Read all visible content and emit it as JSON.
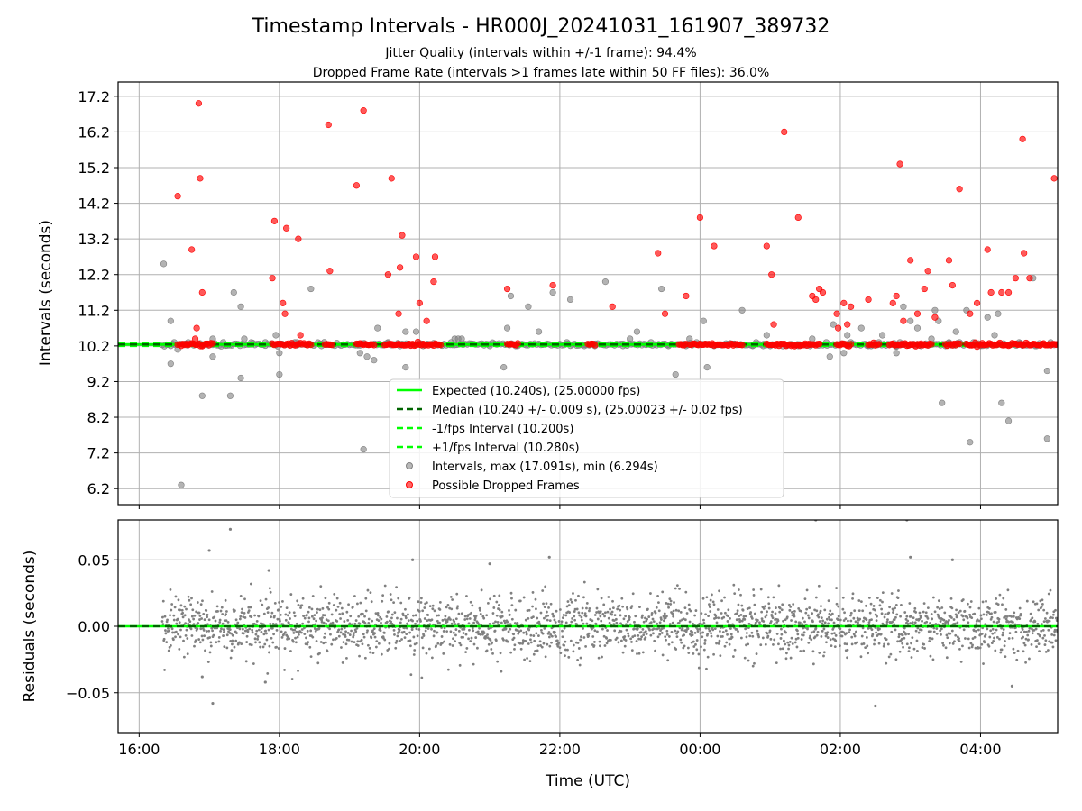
{
  "title": "Timestamp Intervals - HR000J_20241031_161907_389732",
  "subtitle_1": "Jitter Quality (intervals within +/-1 frame): 94.4%",
  "subtitle_2": "Dropped Frame Rate (intervals >1 frames late within 50 FF files): 36.0%",
  "colors": {
    "expected": "#00ff00",
    "median": "#006400",
    "band": "#00ff00",
    "intervals": "#808080",
    "dropped": "#ff0000",
    "residuals": "#808080",
    "grid": "#b0b0b0"
  },
  "legend": {
    "placement": "lower-center",
    "entries": [
      {
        "label": "Expected (10.240s), (25.00000 fps)",
        "style": "solid-line",
        "color": "#00ff00"
      },
      {
        "label": "Median (10.240 +/- 0.009 s), (25.00023 +/- 0.02 fps)",
        "style": "dashed-line",
        "color": "#006400"
      },
      {
        "label": "-1/fps Interval (10.200s)",
        "style": "dashed-line",
        "color": "#00ff00"
      },
      {
        "label": "+1/fps Interval (10.280s)",
        "style": "dashed-line",
        "color": "#00ff00"
      },
      {
        "label": "Intervals, max (17.091s), min (6.294s)",
        "style": "marker",
        "color": "#808080"
      },
      {
        "label": "Possible Dropped Frames",
        "style": "marker",
        "color": "#ff0000"
      }
    ]
  },
  "chart_data": [
    {
      "type": "scatter",
      "ylabel": "Intervals (seconds)",
      "ylim": [
        5.75,
        17.6
      ],
      "x_range_hours": [
        15.7,
        29.1
      ],
      "grid": true,
      "y_ticks": [
        "6.2",
        "7.2",
        "8.2",
        "9.2",
        "10.2",
        "11.2",
        "12.2",
        "13.2",
        "14.2",
        "15.2",
        "16.2",
        "17.2"
      ],
      "lines": {
        "expected": 10.24,
        "median": 10.24,
        "minus_one_fps": 10.2,
        "plus_one_fps": 10.28
      },
      "series": [
        {
          "name": "Intervals, max (17.091s), min (6.294s)",
          "points": [
            [
              16.35,
              12.5
            ],
            [
              16.45,
              10.9
            ],
            [
              16.45,
              9.7
            ],
            [
              16.5,
              10.3
            ],
            [
              16.55,
              10.1
            ],
            [
              16.6,
              6.3
            ],
            [
              16.7,
              10.3
            ],
            [
              16.9,
              10.2
            ],
            [
              16.9,
              8.8
            ],
            [
              17.05,
              9.9
            ],
            [
              17.05,
              10.4
            ],
            [
              17.2,
              10.3
            ],
            [
              17.3,
              8.8
            ],
            [
              17.35,
              11.7
            ],
            [
              17.45,
              9.3
            ],
            [
              17.45,
              11.3
            ],
            [
              17.5,
              10.4
            ],
            [
              17.6,
              10.3
            ],
            [
              17.8,
              10.3
            ],
            [
              17.95,
              10.5
            ],
            [
              18.0,
              10.0
            ],
            [
              18.0,
              9.4
            ],
            [
              18.25,
              10.3
            ],
            [
              18.45,
              11.8
            ],
            [
              18.6,
              10.2
            ],
            [
              19.15,
              10.0
            ],
            [
              19.2,
              7.3
            ],
            [
              19.25,
              9.9
            ],
            [
              19.35,
              9.8
            ],
            [
              19.4,
              10.7
            ],
            [
              19.55,
              10.3
            ],
            [
              19.8,
              9.6
            ],
            [
              19.8,
              10.6
            ],
            [
              19.95,
              10.6
            ],
            [
              20.05,
              10.2
            ],
            [
              20.45,
              10.3
            ],
            [
              20.5,
              10.4
            ],
            [
              20.55,
              10.4
            ],
            [
              20.6,
              10.4
            ],
            [
              21.0,
              10.2
            ],
            [
              21.2,
              9.6
            ],
            [
              21.25,
              10.7
            ],
            [
              21.3,
              11.6
            ],
            [
              21.4,
              10.2
            ],
            [
              21.55,
              11.3
            ],
            [
              21.7,
              10.6
            ],
            [
              21.9,
              11.7
            ],
            [
              22.1,
              10.3
            ],
            [
              22.15,
              11.5
            ],
            [
              22.35,
              10.2
            ],
            [
              22.5,
              10.2
            ],
            [
              22.65,
              12.0
            ],
            [
              22.9,
              10.2
            ],
            [
              23.0,
              10.4
            ],
            [
              23.1,
              10.6
            ],
            [
              23.3,
              10.3
            ],
            [
              23.45,
              11.8
            ],
            [
              23.55,
              10.2
            ],
            [
              23.65,
              9.4
            ],
            [
              23.8,
              10.2
            ],
            [
              23.85,
              10.4
            ],
            [
              23.95,
              10.3
            ],
            [
              24.05,
              10.9
            ],
            [
              24.1,
              9.6
            ],
            [
              24.2,
              10.2
            ],
            [
              24.6,
              11.2
            ],
            [
              24.75,
              10.2
            ],
            [
              24.8,
              10.3
            ],
            [
              24.9,
              10.2
            ],
            [
              24.95,
              10.5
            ],
            [
              25.0,
              10.2
            ],
            [
              25.4,
              10.2
            ],
            [
              25.6,
              10.4
            ],
            [
              25.8,
              10.3
            ],
            [
              25.85,
              9.9
            ],
            [
              25.9,
              10.8
            ],
            [
              26.05,
              10.0
            ],
            [
              26.1,
              10.5
            ],
            [
              26.15,
              10.3
            ],
            [
              26.3,
              10.7
            ],
            [
              26.4,
              10.2
            ],
            [
              26.55,
              10.3
            ],
            [
              26.6,
              10.5
            ],
            [
              26.8,
              10.2
            ],
            [
              26.8,
              10.0
            ],
            [
              26.85,
              10.3
            ],
            [
              26.9,
              11.3
            ],
            [
              27.0,
              10.9
            ],
            [
              27.1,
              10.7
            ],
            [
              27.15,
              10.2
            ],
            [
              27.3,
              10.4
            ],
            [
              27.35,
              11.2
            ],
            [
              27.4,
              10.9
            ],
            [
              27.45,
              8.6
            ],
            [
              27.5,
              10.2
            ],
            [
              27.55,
              10.3
            ],
            [
              27.65,
              10.6
            ],
            [
              27.7,
              10.3
            ],
            [
              27.8,
              11.2
            ],
            [
              27.85,
              7.5
            ],
            [
              27.9,
              10.3
            ],
            [
              28.0,
              10.2
            ],
            [
              28.1,
              11.0
            ],
            [
              28.2,
              10.5
            ],
            [
              28.25,
              11.1
            ],
            [
              28.3,
              8.6
            ],
            [
              28.4,
              8.1
            ],
            [
              28.55,
              10.3
            ],
            [
              28.75,
              12.1
            ],
            [
              28.8,
              10.2
            ],
            [
              28.95,
              9.5
            ],
            [
              28.95,
              7.6
            ],
            [
              29.0,
              10.3
            ]
          ]
        },
        {
          "name": "Possible Dropped Frames",
          "points": [
            [
              16.55,
              14.4
            ],
            [
              16.75,
              12.9
            ],
            [
              16.8,
              10.4
            ],
            [
              16.82,
              10.7
            ],
            [
              16.85,
              17.0
            ],
            [
              16.87,
              14.9
            ],
            [
              16.9,
              11.7
            ],
            [
              17.9,
              12.1
            ],
            [
              17.93,
              13.7
            ],
            [
              18.05,
              11.4
            ],
            [
              18.08,
              11.1
            ],
            [
              18.1,
              13.5
            ],
            [
              18.27,
              13.2
            ],
            [
              18.3,
              10.5
            ],
            [
              18.7,
              16.4
            ],
            [
              18.72,
              12.3
            ],
            [
              19.1,
              14.7
            ],
            [
              19.2,
              16.8
            ],
            [
              19.55,
              12.2
            ],
            [
              19.6,
              14.9
            ],
            [
              19.7,
              11.1
            ],
            [
              19.72,
              12.4
            ],
            [
              19.75,
              13.3
            ],
            [
              19.95,
              12.7
            ],
            [
              20.0,
              11.4
            ],
            [
              20.1,
              10.9
            ],
            [
              20.2,
              12.0
            ],
            [
              20.22,
              12.7
            ],
            [
              21.25,
              11.8
            ],
            [
              21.9,
              11.9
            ],
            [
              22.75,
              11.3
            ],
            [
              23.4,
              12.8
            ],
            [
              23.5,
              11.1
            ],
            [
              23.8,
              11.6
            ],
            [
              24.0,
              13.8
            ],
            [
              24.2,
              13.0
            ],
            [
              24.95,
              13.0
            ],
            [
              25.02,
              12.2
            ],
            [
              25.05,
              10.8
            ],
            [
              25.2,
              16.2
            ],
            [
              25.4,
              13.8
            ],
            [
              25.6,
              11.6
            ],
            [
              25.65,
              11.5
            ],
            [
              25.7,
              11.8
            ],
            [
              25.75,
              11.7
            ],
            [
              25.95,
              11.1
            ],
            [
              25.97,
              10.7
            ],
            [
              26.05,
              11.4
            ],
            [
              26.1,
              10.8
            ],
            [
              26.15,
              11.3
            ],
            [
              26.4,
              11.5
            ],
            [
              26.75,
              11.4
            ],
            [
              26.8,
              11.6
            ],
            [
              26.85,
              15.3
            ],
            [
              26.9,
              10.9
            ],
            [
              27.0,
              12.6
            ],
            [
              27.1,
              11.1
            ],
            [
              27.2,
              11.8
            ],
            [
              27.25,
              12.3
            ],
            [
              27.35,
              11.0
            ],
            [
              27.55,
              12.6
            ],
            [
              27.6,
              11.9
            ],
            [
              27.7,
              14.6
            ],
            [
              27.85,
              11.1
            ],
            [
              27.95,
              11.4
            ],
            [
              28.1,
              12.9
            ],
            [
              28.15,
              11.7
            ],
            [
              28.3,
              11.7
            ],
            [
              28.4,
              11.7
            ],
            [
              28.5,
              12.1
            ],
            [
              28.6,
              16.0
            ],
            [
              28.62,
              12.8
            ],
            [
              28.7,
              12.1
            ],
            [
              29.05,
              14.9
            ]
          ]
        }
      ]
    },
    {
      "type": "scatter",
      "ylabel": "Residuals (seconds)",
      "xlabel": "Time (UTC)",
      "ylim": [
        -0.08,
        0.08
      ],
      "x_range_hours": [
        15.7,
        29.1
      ],
      "grid": true,
      "y_ticks": [
        "0.05",
        "0.00",
        "−0.05"
      ],
      "x_ticks": [
        "16:00",
        "18:00",
        "20:00",
        "22:00",
        "00:00",
        "02:00",
        "04:00"
      ],
      "series": [
        {
          "name": "residuals",
          "spread_std": 0.011,
          "x_start": 16.33,
          "x_end": 29.1,
          "outliers": [
            [
              17.0,
              0.057
            ],
            [
              17.3,
              0.073
            ],
            [
              17.85,
              0.042
            ],
            [
              19.9,
              0.05
            ],
            [
              21.0,
              0.047
            ],
            [
              21.85,
              0.052
            ],
            [
              25.65,
              0.08
            ],
            [
              26.95,
              0.08
            ],
            [
              27.0,
              0.052
            ],
            [
              27.6,
              0.05
            ],
            [
              17.05,
              -0.058
            ],
            [
              16.9,
              -0.038
            ],
            [
              17.8,
              -0.042
            ],
            [
              26.5,
              -0.06
            ],
            [
              28.45,
              -0.045
            ]
          ]
        }
      ]
    }
  ]
}
